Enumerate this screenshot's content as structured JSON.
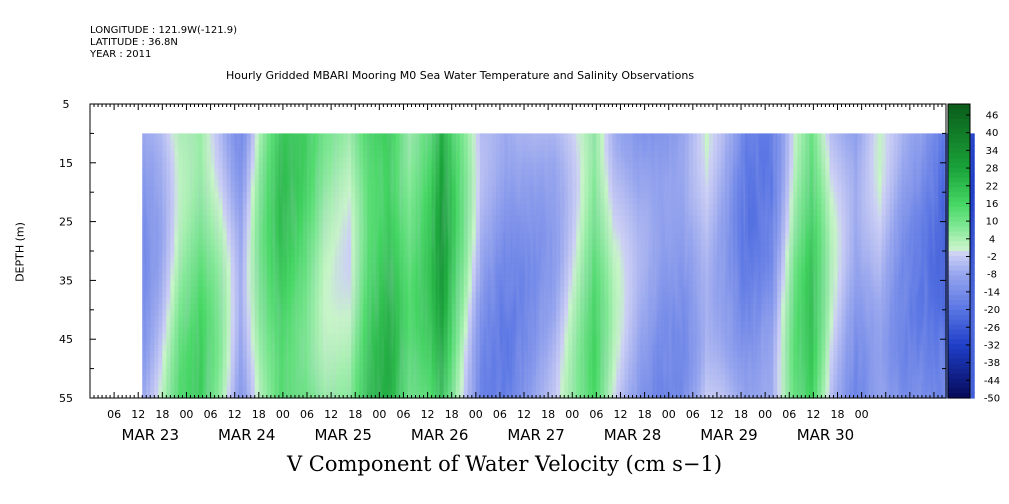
{
  "header": {
    "longitude": "LONGITUDE : 121.9W(-121.9)",
    "latitude": "LATITUDE : 36.8N",
    "year": "YEAR : 2011"
  },
  "chart_data": {
    "type": "heatmap",
    "title": "Hourly Gridded MBARI Mooring M0 Sea Water Temperature and Salinity Observations",
    "xlabel": "V Component of Water Velocity (cm s−1)",
    "ylabel": "DEPTH (m)",
    "ylim": [
      5,
      55
    ],
    "y_ticks": [
      "5",
      "15",
      "25",
      "35",
      "45",
      "55"
    ],
    "x_hour_ticks": [
      "06",
      "12",
      "18",
      "00",
      "06",
      "12",
      "18",
      "00",
      "06",
      "12",
      "18",
      "00",
      "06",
      "12",
      "18",
      "00",
      "06",
      "12",
      "18",
      "00",
      "06",
      "12",
      "18",
      "00",
      "06",
      "12",
      "18",
      "00",
      "06",
      "12",
      "18",
      "00"
    ],
    "x_day_labels": [
      "MAR 23",
      "MAR 24",
      "MAR 25",
      "MAR 26",
      "MAR 27",
      "MAR 28",
      "MAR 29",
      "MAR 30"
    ],
    "data_depth_range": [
      10,
      55
    ],
    "colorbar": {
      "labels": [
        "46",
        "40",
        "34",
        "28",
        "22",
        "16",
        "10",
        "4",
        "-2",
        "-8",
        "-14",
        "-20",
        "-26",
        "-32",
        "-38",
        "-44",
        "-50"
      ],
      "range": [
        -50,
        50
      ]
    },
    "time_profile_v": [
      {
        "t": 0,
        "v": -10
      },
      {
        "t": 4,
        "v": -4
      },
      {
        "t": 9,
        "v": 8
      },
      {
        "t": 14,
        "v": 12
      },
      {
        "t": 19,
        "v": 2
      },
      {
        "t": 24,
        "v": -12
      },
      {
        "t": 29,
        "v": 6
      },
      {
        "t": 34,
        "v": 18
      },
      {
        "t": 40,
        "v": 14
      },
      {
        "t": 45,
        "v": 6
      },
      {
        "t": 51,
        "v": 4
      },
      {
        "t": 56,
        "v": 18
      },
      {
        "t": 61,
        "v": 22
      },
      {
        "t": 66,
        "v": 10
      },
      {
        "t": 71,
        "v": 16
      },
      {
        "t": 74,
        "v": 26
      },
      {
        "t": 78,
        "v": 10
      },
      {
        "t": 84,
        "v": -10
      },
      {
        "t": 90,
        "v": -14
      },
      {
        "t": 96,
        "v": -10
      },
      {
        "t": 102,
        "v": -6
      },
      {
        "t": 108,
        "v": 4
      },
      {
        "t": 112,
        "v": 12
      },
      {
        "t": 117,
        "v": -2
      },
      {
        "t": 123,
        "v": -10
      },
      {
        "t": 129,
        "v": -14
      },
      {
        "t": 134,
        "v": -12
      },
      {
        "t": 140,
        "v": -2
      },
      {
        "t": 144,
        "v": -6
      },
      {
        "t": 150,
        "v": -16
      },
      {
        "t": 156,
        "v": -14
      },
      {
        "t": 162,
        "v": 8
      },
      {
        "t": 166,
        "v": 16
      },
      {
        "t": 171,
        "v": -2
      },
      {
        "t": 177,
        "v": -12
      },
      {
        "t": 183,
        "v": -4
      },
      {
        "t": 189,
        "v": -12
      },
      {
        "t": 195,
        "v": -16
      },
      {
        "t": 201,
        "v": -22
      },
      {
        "t": 206,
        "v": -28
      },
      {
        "t": 211,
        "v": -16
      },
      {
        "t": 217,
        "v": -8
      },
      {
        "t": 220,
        "v": -10
      }
    ],
    "t_start_hours_from_mar23_00": 13,
    "t_end_hours_from_mar23_00": 220
  }
}
